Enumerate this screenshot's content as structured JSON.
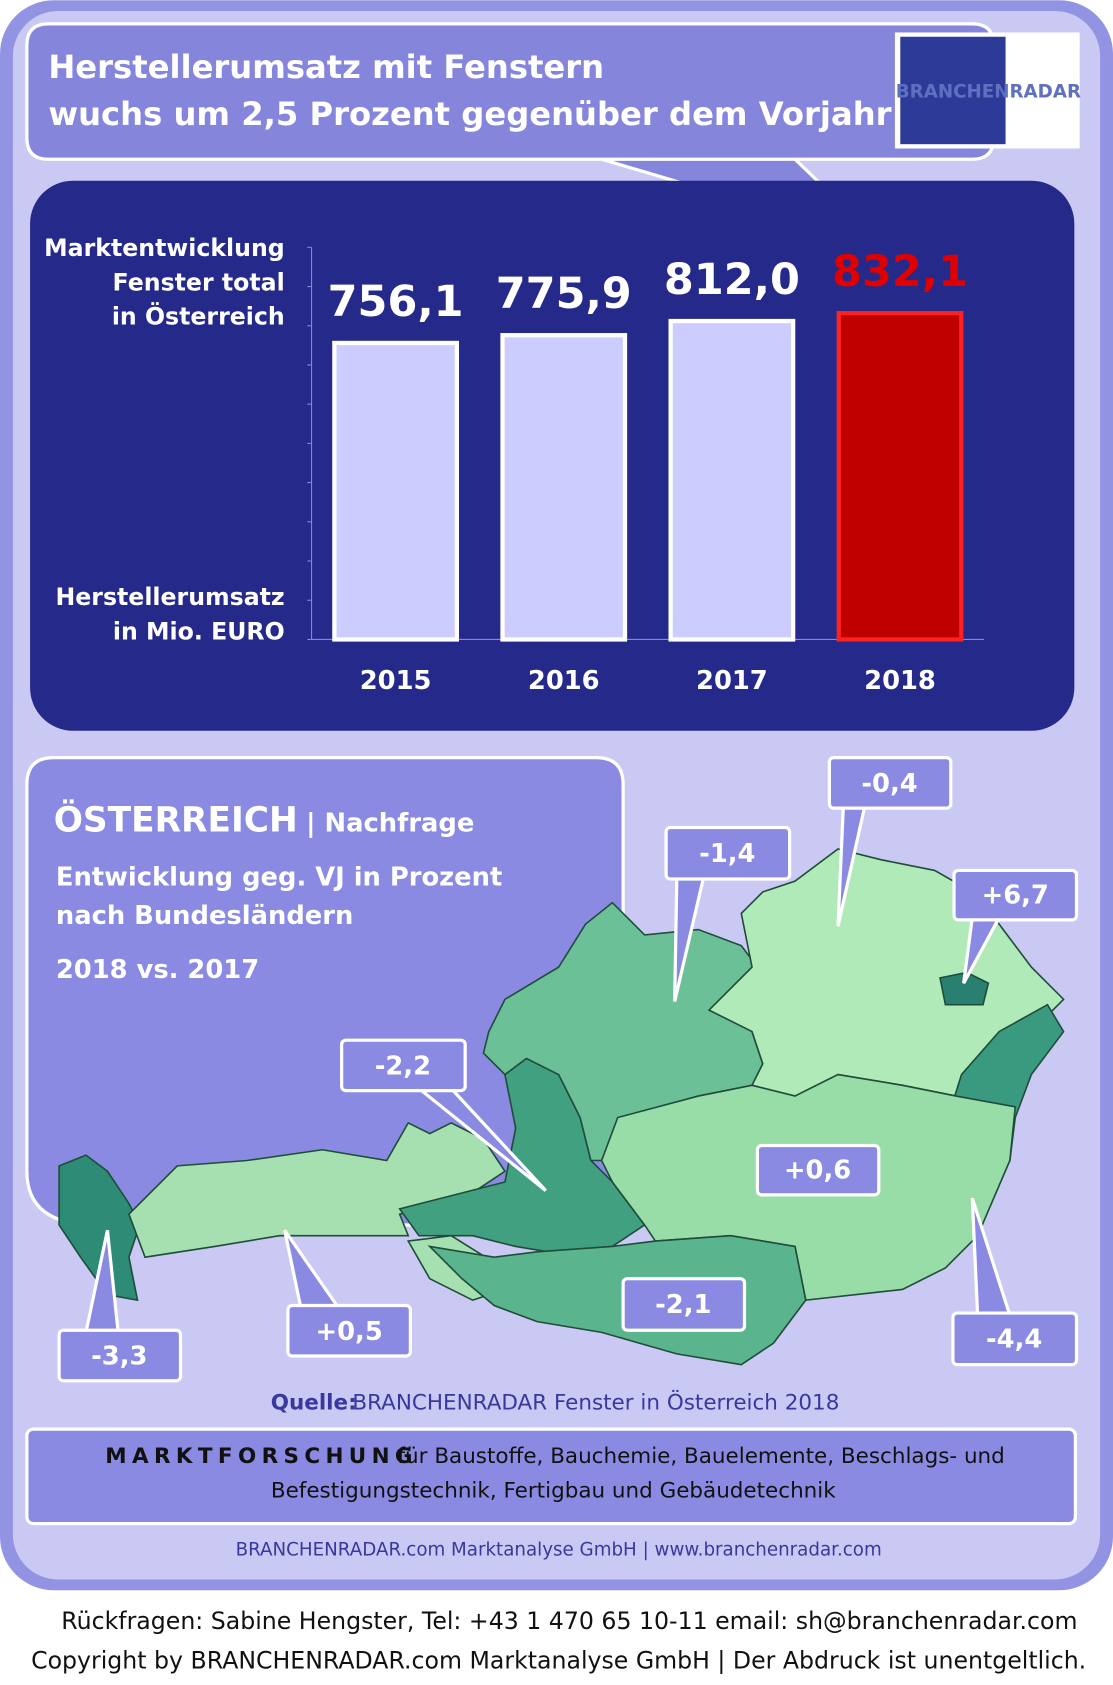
{
  "header": {
    "title": [
      "Herstellerumsatz mit Fenstern",
      "wuchs um 2,5 Prozent gegenüber dem Vorjahr"
    ],
    "logo": "BRANCHENRADAR"
  },
  "chart_data": {
    "type": "bar",
    "ylabel_top": [
      "Marktentwicklung",
      "Fenster total",
      "in Österreich"
    ],
    "ylabel_bottom": [
      "Herstellerumsatz",
      "in Mio. EURO"
    ],
    "categories": [
      "2015",
      "2016",
      "2017",
      "2018"
    ],
    "values": [
      756.1,
      775.9,
      812.0,
      832.1
    ],
    "value_labels": [
      "756,1",
      "775,9",
      "812,0",
      "832,1"
    ],
    "colors": [
      "#ccccff",
      "#ccccff",
      "#ccccff",
      "#c00000"
    ],
    "label_colors": [
      "#ffffff",
      "#ffffff",
      "#ffffff",
      "#e00000"
    ],
    "ylim": [
      0,
      1000
    ],
    "yticks": [
      0,
      100,
      200,
      300,
      400,
      500,
      600,
      700,
      800,
      900,
      1000
    ]
  },
  "map": {
    "heading": "ÖSTERREICH",
    "heading_sub": "| Nachfrage",
    "subtitle": [
      "Entwicklung  geg. VJ in Prozent",
      "nach Bundesländern"
    ],
    "period": "2018 vs. 2017",
    "callouts": [
      "-0,4",
      "-1,4",
      "+6,7",
      "-2,2",
      "+0,6",
      "-3,3",
      "+0,5",
      "-2,1",
      "-4,4"
    ]
  },
  "source": {
    "label": "Quelle:",
    "text": "BRANCHENRADAR Fenster in Österreich 2018"
  },
  "banner": {
    "strong": "MARKTFORSCHUNG",
    "line1": "für Baustoffe, Bauchemie, Bauelemente, Beschlags- und",
    "line2": "Befestigungstechnik, Fertigbau und Gebäudetechnik"
  },
  "company": "BRANCHENRADAR.com Marktanalyse GmbH | www.branchenradar.com",
  "footer": [
    "Rückfragen: Sabine Hengster, Tel: +43 1 470 65 10-11 email: sh@branchenradar.com",
    "Copyright by BRANCHENRADAR.com  Marktanalyse GmbH | Der Abdruck ist unentgeltlich."
  ]
}
